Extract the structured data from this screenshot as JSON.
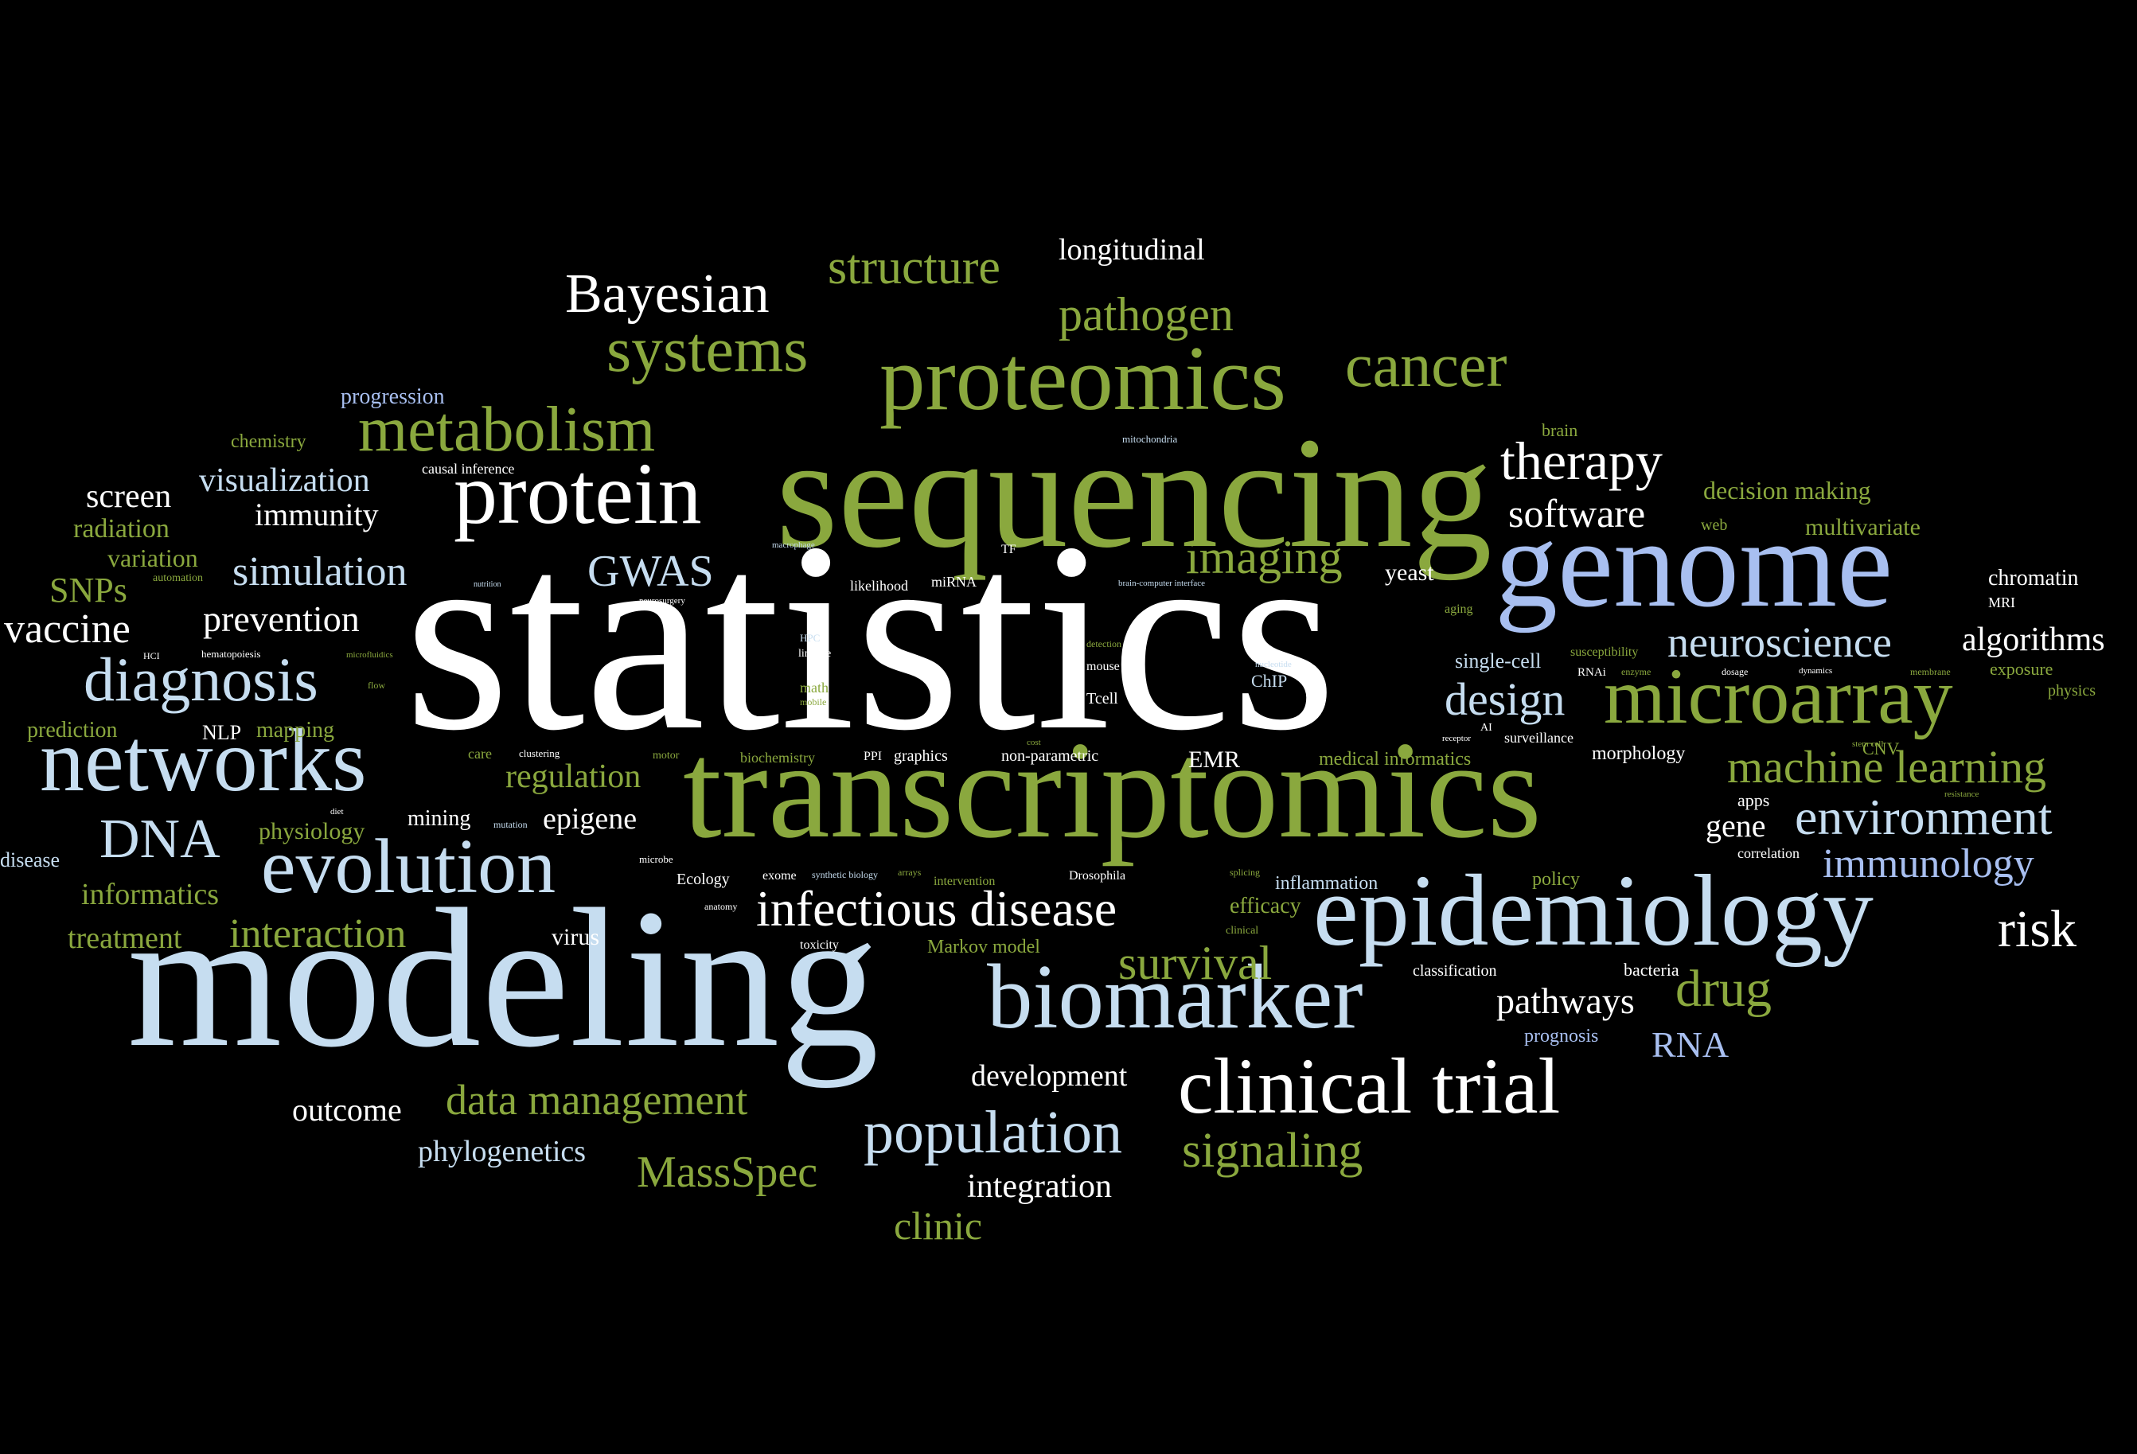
{
  "colors": {
    "white": "#ffffff",
    "olive": "#8aa83e",
    "lightblue": "#c6ddf0",
    "periwinkle": "#a8bff0"
  },
  "words": [
    {
      "text": "statistics",
      "color": "white"
    },
    {
      "text": "modeling",
      "color": "lightblue"
    },
    {
      "text": "sequencing",
      "color": "olive"
    },
    {
      "text": "transcriptomics",
      "color": "olive"
    },
    {
      "text": "genome",
      "color": "periwinkle"
    },
    {
      "text": "epidemiology",
      "color": "lightblue"
    },
    {
      "text": "proteomics",
      "color": "olive"
    },
    {
      "text": "biomarker",
      "color": "lightblue"
    },
    {
      "text": "microarray",
      "color": "olive"
    },
    {
      "text": "networks",
      "color": "lightblue"
    },
    {
      "text": "protein",
      "color": "white"
    },
    {
      "text": "clinical trial",
      "color": "white"
    },
    {
      "text": "evolution",
      "color": "lightblue"
    },
    {
      "text": "population",
      "color": "lightblue"
    },
    {
      "text": "metabolism",
      "color": "olive"
    },
    {
      "text": "systems",
      "color": "olive"
    },
    {
      "text": "cancer",
      "color": "olive"
    },
    {
      "text": "Bayesian",
      "color": "white"
    },
    {
      "text": "structure",
      "color": "olive"
    },
    {
      "text": "pathogen",
      "color": "olive"
    },
    {
      "text": "longitudinal",
      "color": "white"
    },
    {
      "text": "therapy",
      "color": "white"
    },
    {
      "text": "diagnosis",
      "color": "lightblue"
    },
    {
      "text": "DNA",
      "color": "lightblue"
    },
    {
      "text": "infectious disease",
      "color": "white"
    },
    {
      "text": "environment",
      "color": "lightblue"
    },
    {
      "text": "imaging",
      "color": "olive"
    },
    {
      "text": "neuroscience",
      "color": "lightblue"
    },
    {
      "text": "machine learning",
      "color": "olive"
    },
    {
      "text": "design",
      "color": "lightblue"
    },
    {
      "text": "software",
      "color": "white"
    },
    {
      "text": "survival",
      "color": "olive"
    },
    {
      "text": "drug",
      "color": "olive"
    },
    {
      "text": "signaling",
      "color": "olive"
    },
    {
      "text": "MassSpec",
      "color": "olive"
    },
    {
      "text": "data management",
      "color": "olive"
    },
    {
      "text": "risk",
      "color": "white"
    },
    {
      "text": "immunology",
      "color": "periwinkle"
    },
    {
      "text": "GWAS",
      "color": "lightblue"
    },
    {
      "text": "simulation",
      "color": "lightblue"
    },
    {
      "text": "visualization",
      "color": "lightblue"
    },
    {
      "text": "vaccine",
      "color": "white"
    },
    {
      "text": "prevention",
      "color": "white"
    },
    {
      "text": "interaction",
      "color": "olive"
    },
    {
      "text": "screen",
      "color": "white"
    },
    {
      "text": "immunity",
      "color": "white"
    },
    {
      "text": "pathways",
      "color": "white"
    },
    {
      "text": "RNA",
      "color": "periwinkle"
    },
    {
      "text": "algorithms",
      "color": "white"
    },
    {
      "text": "clinic",
      "color": "olive"
    },
    {
      "text": "integration",
      "color": "white"
    },
    {
      "text": "development",
      "color": "white"
    },
    {
      "text": "outcome",
      "color": "white"
    },
    {
      "text": "phylogenetics",
      "color": "lightblue"
    },
    {
      "text": "regulation",
      "color": "olive"
    },
    {
      "text": "epigene",
      "color": "white"
    },
    {
      "text": "SNPs",
      "color": "olive"
    },
    {
      "text": "gene",
      "color": "white"
    },
    {
      "text": "informatics",
      "color": "olive"
    },
    {
      "text": "treatment",
      "color": "olive"
    },
    {
      "text": "radiation",
      "color": "olive"
    },
    {
      "text": "variation",
      "color": "olive"
    },
    {
      "text": "physiology",
      "color": "olive"
    },
    {
      "text": "mapping",
      "color": "olive"
    },
    {
      "text": "prediction",
      "color": "olive"
    },
    {
      "text": "progression",
      "color": "periwinkle"
    },
    {
      "text": "chemistry",
      "color": "olive"
    },
    {
      "text": "decision making",
      "color": "olive"
    },
    {
      "text": "multivariate",
      "color": "olive"
    },
    {
      "text": "chromatin",
      "color": "white"
    },
    {
      "text": "yeast",
      "color": "white"
    },
    {
      "text": "virus",
      "color": "white"
    },
    {
      "text": "mining",
      "color": "white"
    },
    {
      "text": "NLP",
      "color": "white"
    },
    {
      "text": "disease",
      "color": "lightblue"
    },
    {
      "text": "efficacy",
      "color": "olive"
    },
    {
      "text": "inflammation",
      "color": "lightblue"
    },
    {
      "text": "EMR",
      "color": "white"
    },
    {
      "text": "single-cell",
      "color": "lightblue"
    },
    {
      "text": "morphology",
      "color": "white"
    },
    {
      "text": "policy",
      "color": "olive"
    },
    {
      "text": "Markov model",
      "color": "olive"
    },
    {
      "text": "bacteria",
      "color": "white"
    },
    {
      "text": "prognosis",
      "color": "periwinkle"
    },
    {
      "text": "classification",
      "color": "white"
    },
    {
      "text": "exposure",
      "color": "olive"
    },
    {
      "text": "CNV",
      "color": "olive"
    },
    {
      "text": "apps",
      "color": "white"
    },
    {
      "text": "correlation",
      "color": "white"
    },
    {
      "text": "physics",
      "color": "olive"
    },
    {
      "text": "brain",
      "color": "olive"
    },
    {
      "text": "web",
      "color": "olive"
    },
    {
      "text": "MRI",
      "color": "white"
    },
    {
      "text": "causal inference",
      "color": "white"
    },
    {
      "text": "likelihood",
      "color": "white"
    },
    {
      "text": "miRNA",
      "color": "white"
    },
    {
      "text": "graphics",
      "color": "white"
    },
    {
      "text": "non-parametric",
      "color": "white"
    },
    {
      "text": "medical informatics",
      "color": "olive"
    },
    {
      "text": "surveillance",
      "color": "white"
    },
    {
      "text": "susceptibility",
      "color": "olive"
    },
    {
      "text": "RNAi",
      "color": "white"
    },
    {
      "text": "ChIP",
      "color": "lightblue"
    },
    {
      "text": "Tcell",
      "color": "white"
    },
    {
      "text": "mouse",
      "color": "white"
    },
    {
      "text": "PPI",
      "color": "white"
    },
    {
      "text": "biochemistry",
      "color": "olive"
    },
    {
      "text": "math",
      "color": "olive"
    },
    {
      "text": "care",
      "color": "olive"
    },
    {
      "text": "motor",
      "color": "olive"
    },
    {
      "text": "Ecology",
      "color": "white"
    },
    {
      "text": "exome",
      "color": "white"
    },
    {
      "text": "intervention",
      "color": "olive"
    },
    {
      "text": "Drosophila",
      "color": "white"
    },
    {
      "text": "toxicity",
      "color": "white"
    },
    {
      "text": "aging",
      "color": "olive"
    },
    {
      "text": "TF",
      "color": "white"
    },
    {
      "text": "HPC",
      "color": "lightblue"
    },
    {
      "text": "linkage",
      "color": "white"
    },
    {
      "text": "clustering",
      "color": "white"
    },
    {
      "text": "microbe",
      "color": "white"
    },
    {
      "text": "mutation",
      "color": "lightblue"
    },
    {
      "text": "synthetic biology",
      "color": "lightblue"
    },
    {
      "text": "arrays",
      "color": "olive"
    },
    {
      "text": "splicing",
      "color": "olive"
    },
    {
      "text": "clinical",
      "color": "olive"
    },
    {
      "text": "anatomy",
      "color": "white"
    },
    {
      "text": "automation",
      "color": "olive"
    },
    {
      "text": "HCI",
      "color": "white"
    },
    {
      "text": "hematopoiesis",
      "color": "white"
    },
    {
      "text": "microfluidics",
      "color": "olive"
    },
    {
      "text": "flow",
      "color": "olive"
    },
    {
      "text": "diet",
      "color": "white"
    },
    {
      "text": "mitochondria",
      "color": "lightblue"
    },
    {
      "text": "neurosurgery",
      "color": "white"
    },
    {
      "text": "macrophage",
      "color": "lightblue"
    },
    {
      "text": "nutrition",
      "color": "lightblue"
    },
    {
      "text": "brain-computer interface",
      "color": "lightblue"
    },
    {
      "text": "detection",
      "color": "olive"
    },
    {
      "text": "cost",
      "color": "olive"
    },
    {
      "text": "nucleotide",
      "color": "lightblue"
    },
    {
      "text": "mobile",
      "color": "olive"
    },
    {
      "text": "receptor",
      "color": "white"
    },
    {
      "text": "AI",
      "color": "white"
    },
    {
      "text": "enzyme",
      "color": "olive"
    },
    {
      "text": "dosage",
      "color": "white"
    },
    {
      "text": "dynamics",
      "color": "white"
    },
    {
      "text": "membrane",
      "color": "olive"
    },
    {
      "text": "stem cell",
      "color": "olive"
    },
    {
      "text": "resistance",
      "color": "olive"
    }
  ]
}
